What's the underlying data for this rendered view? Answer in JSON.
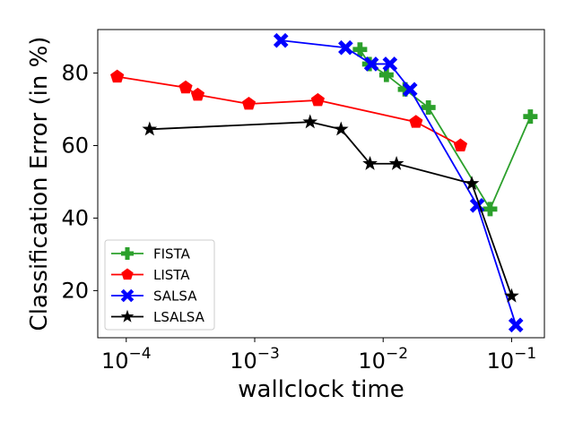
{
  "chart_data": {
    "type": "line",
    "xscale": "log",
    "xlabel": "wallclock time",
    "ylabel": "Classification Error (in %)",
    "xlim": [
      6e-05,
      0.18
    ],
    "ylim": [
      7,
      92
    ],
    "xticks": [
      {
        "value": 0.0001,
        "base": "10",
        "exp": "−4"
      },
      {
        "value": 0.001,
        "base": "10",
        "exp": "−3"
      },
      {
        "value": 0.01,
        "base": "10",
        "exp": "−2"
      },
      {
        "value": 0.1,
        "base": "10",
        "exp": "−1"
      }
    ],
    "yticks": [
      20,
      40,
      60,
      80
    ],
    "legend_position": "lower-left",
    "series": [
      {
        "name": "FISTA",
        "color": "#2ca02c",
        "marker": "plus",
        "points": [
          [
            0.0066,
            86.5
          ],
          [
            0.0078,
            82.5
          ],
          [
            0.0106,
            79.5
          ],
          [
            0.0148,
            75.5
          ],
          [
            0.0225,
            70.5
          ],
          [
            0.068,
            42.5
          ],
          [
            0.14,
            68
          ]
        ]
      },
      {
        "name": "LISTA",
        "color": "#ff0000",
        "marker": "pentagon",
        "points": [
          [
            8.5e-05,
            79
          ],
          [
            0.00029,
            76
          ],
          [
            0.00036,
            74
          ],
          [
            0.0009,
            71.5
          ],
          [
            0.0031,
            72.5
          ],
          [
            0.018,
            66.5
          ],
          [
            0.04,
            60
          ]
        ]
      },
      {
        "name": "SALSA",
        "color": "#0000ff",
        "marker": "x",
        "points": [
          [
            0.0016,
            89
          ],
          [
            0.0051,
            87
          ],
          [
            0.0081,
            82.5
          ],
          [
            0.0113,
            82.5
          ],
          [
            0.0162,
            75.5
          ],
          [
            0.054,
            43.5
          ],
          [
            0.108,
            10.5
          ]
        ]
      },
      {
        "name": "LSALSA",
        "color": "#000000",
        "marker": "star",
        "points": [
          [
            0.000152,
            64.5
          ],
          [
            0.0027,
            66.5
          ],
          [
            0.0047,
            64.5
          ],
          [
            0.0079,
            55
          ],
          [
            0.0127,
            55
          ],
          [
            0.049,
            49.5
          ],
          [
            0.1,
            18.5
          ]
        ]
      }
    ]
  }
}
